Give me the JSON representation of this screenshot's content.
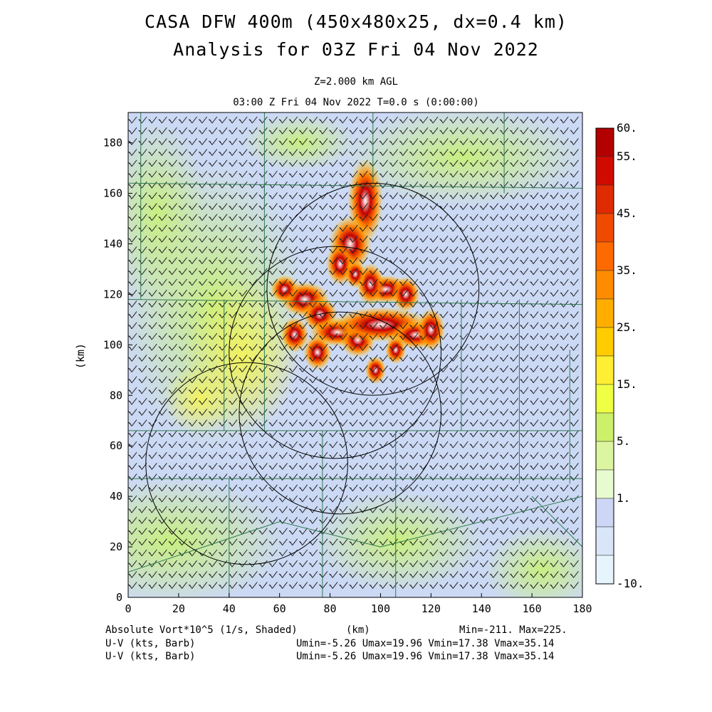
{
  "title_line1": "CASA DFW 400m (450x480x25, dx=0.4 km)",
  "title_line2": "Analysis for 03Z Fri 04 Nov 2022",
  "subtitle_level": "Z=2.000 km AGL",
  "subtitle_time": "03:00 Z Fri 04 Nov 2022    T=0.0 s (0:00:00)",
  "footer": {
    "field_label": "Absolute Vort*10^5 (1/s, Shaded)",
    "xunit": "(km)",
    "minmax": "Min=-211. Max=225.",
    "wind1_label": "U-V (kts, Barb)",
    "wind1_stats": "Umin=-5.26 Umax=19.96 Vmin=17.38 Vmax=35.14",
    "wind2_label": "U-V (kts, Barb)",
    "wind2_stats": "Umin=-5.26 Umax=19.96 Vmin=17.38 Vmax=35.14"
  },
  "colors": {
    "background_field": "#ccd9f5",
    "grid_lines": "#2f7a4f",
    "barbs": "#222222"
  },
  "chart_data": {
    "type": "heatmap",
    "title": "CASA DFW 400m (450x480x25, dx=0.4 km)",
    "xlabel": "(km)",
    "ylabel": "(km)",
    "xlim": [
      0,
      180
    ],
    "ylim": [
      0,
      192
    ],
    "xticks": [
      "0",
      "20",
      "40",
      "60",
      "80",
      "100",
      "120",
      "140",
      "160",
      "180"
    ],
    "yticks": [
      "0",
      "20",
      "40",
      "60",
      "80",
      "100",
      "120",
      "140",
      "160",
      "180"
    ],
    "colorbar": {
      "labels": [
        "60.",
        "55.",
        "45.",
        "35.",
        "25.",
        "15.",
        "5.",
        "1.",
        "-10."
      ],
      "bands": [
        "#b30000",
        "#d10a00",
        "#e02a00",
        "#f04a00",
        "#ff6a00",
        "#ff8c00",
        "#ffae00",
        "#ffcc00",
        "#ffee33",
        "#eeff44",
        "#ccf06a",
        "#dcf5a0",
        "#e8fad0",
        "#cdd6f5",
        "#d8e6f8",
        "#e6f4fb"
      ]
    },
    "radar_rings": [
      {
        "cx": 97,
        "cy": 122,
        "r": 42
      },
      {
        "cx": 82,
        "cy": 97,
        "r": 42
      },
      {
        "cx": 84,
        "cy": 73,
        "r": 40
      },
      {
        "cx": 47,
        "cy": 53,
        "r": 40
      }
    ],
    "wind_speed_kts": {
      "u_range": [
        -5.26,
        19.96
      ],
      "v_range": [
        17.38,
        35.14
      ]
    },
    "vorticity_range": [
      -211,
      225
    ]
  }
}
